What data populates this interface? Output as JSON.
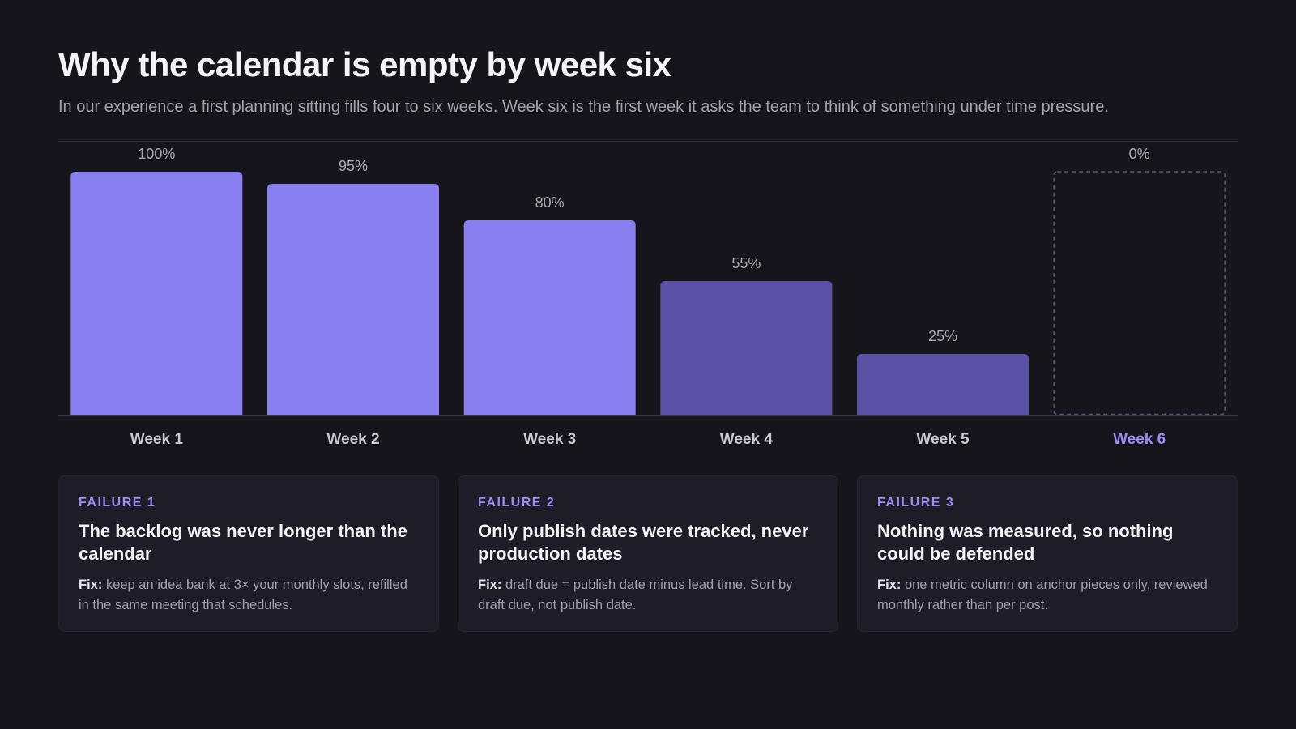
{
  "header": {
    "title": "Why the calendar is empty by week six",
    "subtitle": "In our experience a first planning sitting fills four to six weeks. Week six is the first week it asks the team to think of something under time pressure."
  },
  "chart_data": {
    "type": "bar",
    "categories": [
      "Week 1",
      "Week 2",
      "Week 3",
      "Week 4",
      "Week 5",
      "Week 6"
    ],
    "values": [
      100,
      95,
      80,
      55,
      25,
      0
    ],
    "value_labels": [
      "100%",
      "95%",
      "80%",
      "55%",
      "25%",
      "0%"
    ],
    "unit": "%",
    "ylim": [
      0,
      100
    ],
    "grid": false,
    "legend": "none",
    "highlight_category": "Week 6",
    "colors": {
      "strong": "#8a7ff0",
      "muted": "#5b52a6",
      "empty_outline": "#5a5476",
      "highlight_label": "#9b8cf6"
    },
    "bar_styles": [
      "strong",
      "strong",
      "strong",
      "muted",
      "muted",
      "empty"
    ]
  },
  "cards": [
    {
      "tag": "FAILURE 1",
      "title": "The backlog was never longer than the calendar",
      "fix_label": "Fix:",
      "fix_text": "keep an idea bank at 3× your monthly slots, refilled in the same meeting that schedules."
    },
    {
      "tag": "FAILURE 2",
      "title": "Only publish dates were tracked, never production dates",
      "fix_label": "Fix:",
      "fix_text": "draft due = publish date minus lead time. Sort by draft due, not publish date."
    },
    {
      "tag": "FAILURE 3",
      "title": "Nothing was measured, so nothing could be defended",
      "fix_label": "Fix:",
      "fix_text": "one metric column on anchor pieces only, reviewed monthly rather than per post."
    }
  ]
}
